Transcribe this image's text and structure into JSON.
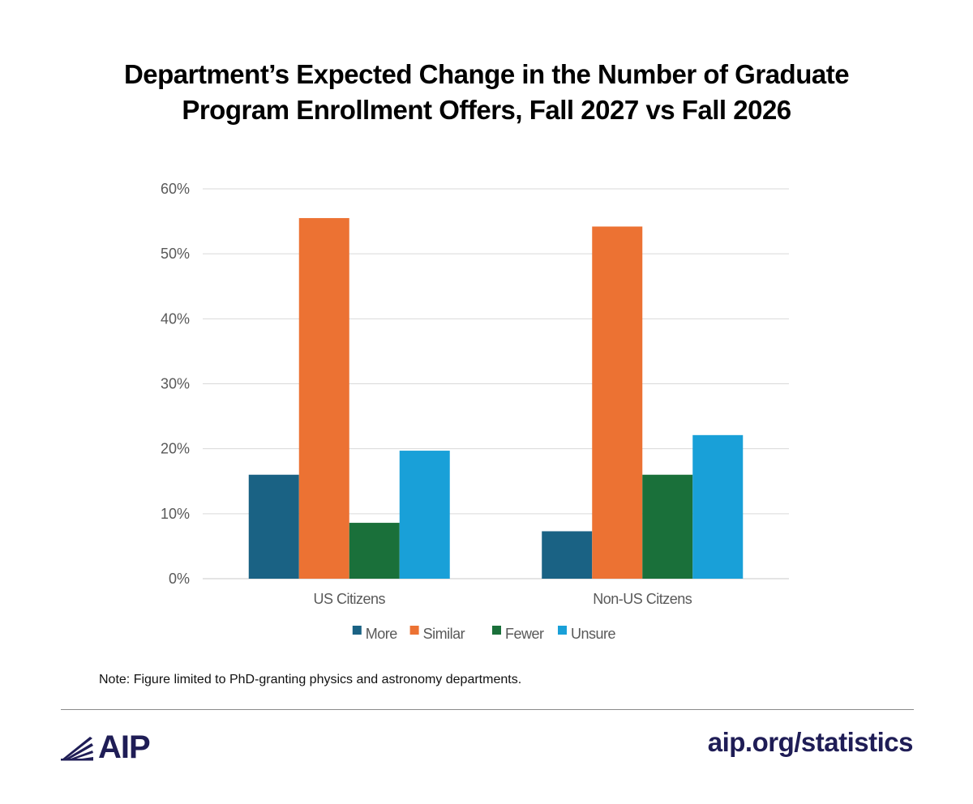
{
  "chart_data": {
    "type": "bar",
    "title_lines": [
      "Department’s Expected Change in the Number of Graduate",
      "Program Enrollment Offers, Fall 2027 vs Fall 2026"
    ],
    "categories": [
      "US Citizens",
      "Non-US Citzens"
    ],
    "series": [
      {
        "name": "More",
        "color": "#1a6284",
        "values": [
          16,
          7.3
        ]
      },
      {
        "name": "Similar",
        "color": "#ec7233",
        "values": [
          55.5,
          54.2
        ]
      },
      {
        "name": "Fewer",
        "color": "#1a703a",
        "values": [
          8.6,
          16
        ]
      },
      {
        "name": "Unsure",
        "color": "#19a0d8",
        "values": [
          19.7,
          22.1
        ]
      }
    ],
    "ylim": [
      0,
      60
    ],
    "yticks": [
      0,
      10,
      20,
      30,
      40,
      50,
      60
    ],
    "ytick_labels": [
      "0%",
      "10%",
      "20%",
      "30%",
      "40%",
      "50%",
      "60%"
    ],
    "grid": true,
    "legend_position": "bottom"
  },
  "note": "Note: Figure limited to PhD-granting physics and astronomy departments.",
  "footer": {
    "logo_text": "AIP",
    "url": "aip.org/statistics",
    "brand_color": "#1f1d56"
  }
}
